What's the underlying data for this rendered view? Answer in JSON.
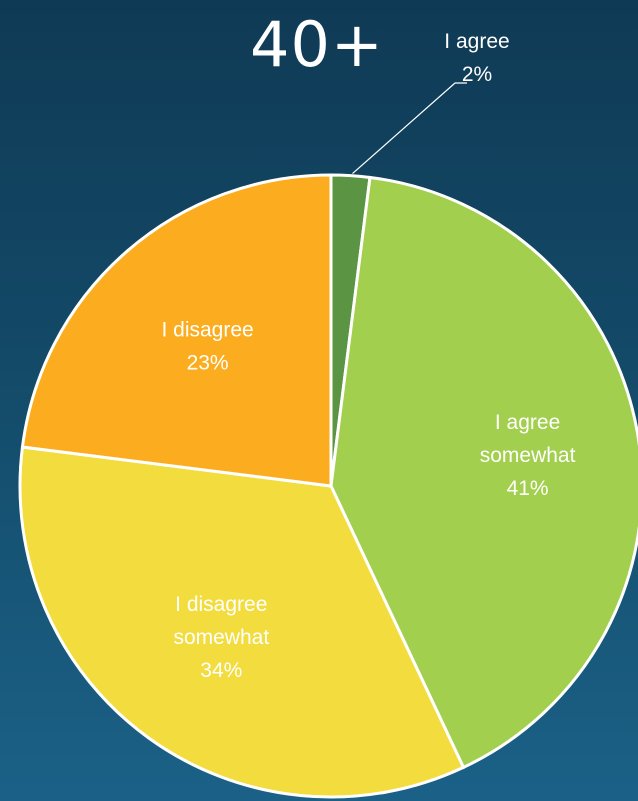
{
  "chart_data": {
    "type": "pie",
    "title": "40+",
    "slices": [
      {
        "label_lines": [
          "I agree"
        ],
        "pct_label": "2%",
        "value": 2,
        "color": "#5b9442"
      },
      {
        "label_lines": [
          "I agree",
          "somewhat"
        ],
        "pct_label": "41%",
        "value": 41,
        "color": "#a2cf4d"
      },
      {
        "label_lines": [
          "I disagree",
          "somewhat"
        ],
        "pct_label": "34%",
        "value": 34,
        "color": "#f2dc3e"
      },
      {
        "label_lines": [
          "I disagree"
        ],
        "pct_label": "23%",
        "value": 23,
        "color": "#fbad1f"
      }
    ]
  }
}
